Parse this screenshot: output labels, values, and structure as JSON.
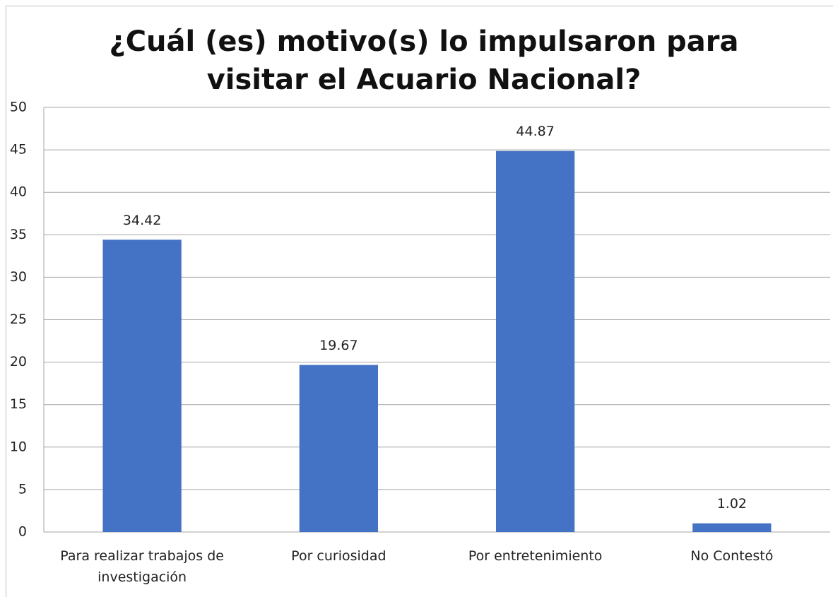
{
  "chart_data": {
    "type": "bar",
    "title": "¿Cuál (es) motivo(s) lo impulsaron para visitar el Acuario Nacional?",
    "categories": [
      "Para realizar trabajos de investigación",
      "Por curiosidad",
      "Por entretenimiento",
      "No Contestó"
    ],
    "values": [
      34.42,
      19.67,
      44.87,
      1.02
    ],
    "color": "#4472c4",
    "ylim": [
      0,
      50
    ],
    "yticks": [
      0,
      5,
      10,
      15,
      20,
      25,
      30,
      35,
      40,
      45,
      50
    ],
    "grid": true
  }
}
